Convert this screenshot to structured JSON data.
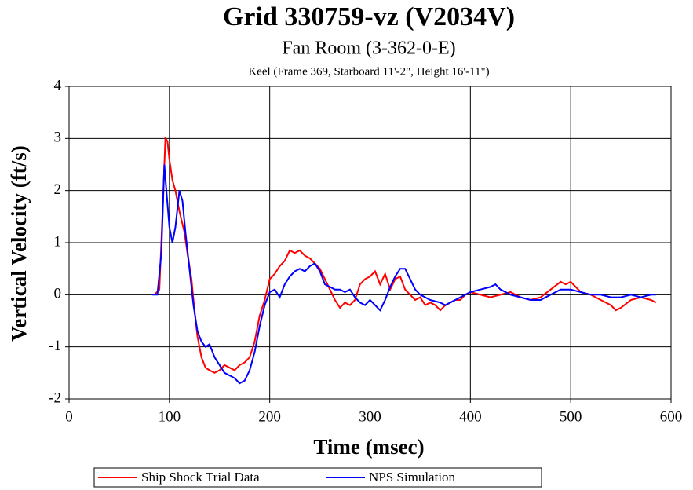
{
  "chart_data": {
    "type": "line",
    "title": "Grid 330759-vz (V2034V)",
    "subtitle": "Fan Room (3-362-0-E)",
    "annotation": "Keel (Frame 369, Starboard 11'-2\", Height 16'-11\")",
    "xlabel": "Time (msec)",
    "ylabel": "Vertical Velocity (ft/s)",
    "xlim": [
      0,
      600
    ],
    "xticks": [
      0,
      100,
      200,
      300,
      400,
      500,
      600
    ],
    "ylim": [
      -2,
      4
    ],
    "yticks": [
      -2,
      -1,
      0,
      1,
      2,
      3,
      4
    ],
    "grid": true,
    "legend": "bottom",
    "series": [
      {
        "name": "Ship Shock Trial Data",
        "color": "#ff0000",
        "x": [
          85,
          90,
          93,
          96,
          98,
          100,
          103,
          106,
          110,
          115,
          118,
          122,
          125,
          128,
          132,
          136,
          140,
          145,
          150,
          155,
          160,
          165,
          170,
          175,
          180,
          185,
          190,
          195,
          200,
          205,
          210,
          215,
          220,
          225,
          230,
          235,
          240,
          245,
          250,
          255,
          260,
          265,
          270,
          275,
          280,
          285,
          290,
          295,
          300,
          305,
          310,
          315,
          320,
          325,
          330,
          335,
          340,
          345,
          350,
          355,
          360,
          365,
          370,
          375,
          380,
          385,
          390,
          395,
          400,
          410,
          420,
          430,
          440,
          450,
          460,
          470,
          480,
          490,
          495,
          500,
          505,
          510,
          520,
          530,
          540,
          545,
          550,
          560,
          570,
          580,
          585
        ],
        "values": [
          0,
          0.1,
          1.5,
          3.0,
          2.95,
          2.6,
          2.2,
          2.0,
          1.6,
          1.2,
          0.8,
          0.3,
          -0.3,
          -0.8,
          -1.2,
          -1.4,
          -1.45,
          -1.5,
          -1.45,
          -1.35,
          -1.4,
          -1.45,
          -1.35,
          -1.3,
          -1.2,
          -0.9,
          -0.4,
          -0.1,
          0.3,
          0.4,
          0.55,
          0.65,
          0.85,
          0.8,
          0.85,
          0.75,
          0.7,
          0.6,
          0.5,
          0.3,
          0.1,
          -0.1,
          -0.25,
          -0.15,
          -0.2,
          -0.1,
          0.2,
          0.3,
          0.35,
          0.45,
          0.2,
          0.4,
          0.1,
          0.3,
          0.35,
          0.1,
          0.0,
          -0.1,
          -0.05,
          -0.2,
          -0.15,
          -0.2,
          -0.3,
          -0.2,
          -0.15,
          -0.1,
          -0.1,
          0.0,
          0.05,
          0.0,
          -0.05,
          0.0,
          0.05,
          -0.05,
          -0.1,
          -0.05,
          0.1,
          0.25,
          0.2,
          0.25,
          0.15,
          0.05,
          0.0,
          -0.1,
          -0.2,
          -0.3,
          -0.25,
          -0.1,
          -0.05,
          -0.1,
          -0.15
        ]
      },
      {
        "name": "NPS Simulation",
        "color": "#0000ff",
        "x": [
          83,
          88,
          92,
          95,
          97,
          100,
          103,
          106,
          110,
          113,
          116,
          120,
          124,
          128,
          132,
          136,
          140,
          145,
          150,
          155,
          160,
          165,
          170,
          175,
          180,
          185,
          190,
          195,
          200,
          205,
          210,
          215,
          220,
          225,
          230,
          235,
          240,
          245,
          250,
          255,
          260,
          265,
          270,
          275,
          280,
          285,
          290,
          295,
          300,
          305,
          310,
          315,
          320,
          325,
          330,
          335,
          340,
          345,
          350,
          355,
          360,
          370,
          375,
          380,
          390,
          400,
          410,
          420,
          425,
          430,
          440,
          450,
          460,
          470,
          480,
          490,
          500,
          510,
          520,
          530,
          540,
          550,
          560,
          570,
          580,
          585
        ],
        "values": [
          0,
          0,
          0.8,
          2.5,
          2.0,
          1.3,
          1.0,
          1.3,
          2.0,
          1.8,
          1.2,
          0.5,
          -0.2,
          -0.7,
          -0.9,
          -1.0,
          -0.95,
          -1.2,
          -1.35,
          -1.5,
          -1.55,
          -1.6,
          -1.7,
          -1.65,
          -1.45,
          -1.1,
          -0.6,
          -0.2,
          0.05,
          0.1,
          -0.05,
          0.2,
          0.35,
          0.45,
          0.5,
          0.45,
          0.55,
          0.6,
          0.45,
          0.2,
          0.15,
          0.1,
          0.1,
          0.05,
          0.1,
          -0.05,
          -0.15,
          -0.2,
          -0.1,
          -0.2,
          -0.3,
          -0.1,
          0.15,
          0.35,
          0.5,
          0.5,
          0.3,
          0.1,
          0.0,
          -0.05,
          -0.1,
          -0.15,
          -0.2,
          -0.15,
          -0.05,
          0.05,
          0.1,
          0.15,
          0.2,
          0.1,
          0.0,
          -0.05,
          -0.1,
          -0.1,
          0.0,
          0.1,
          0.1,
          0.05,
          0.0,
          0.0,
          -0.05,
          -0.05,
          0.0,
          -0.05,
          0.0,
          0.0
        ]
      }
    ]
  }
}
